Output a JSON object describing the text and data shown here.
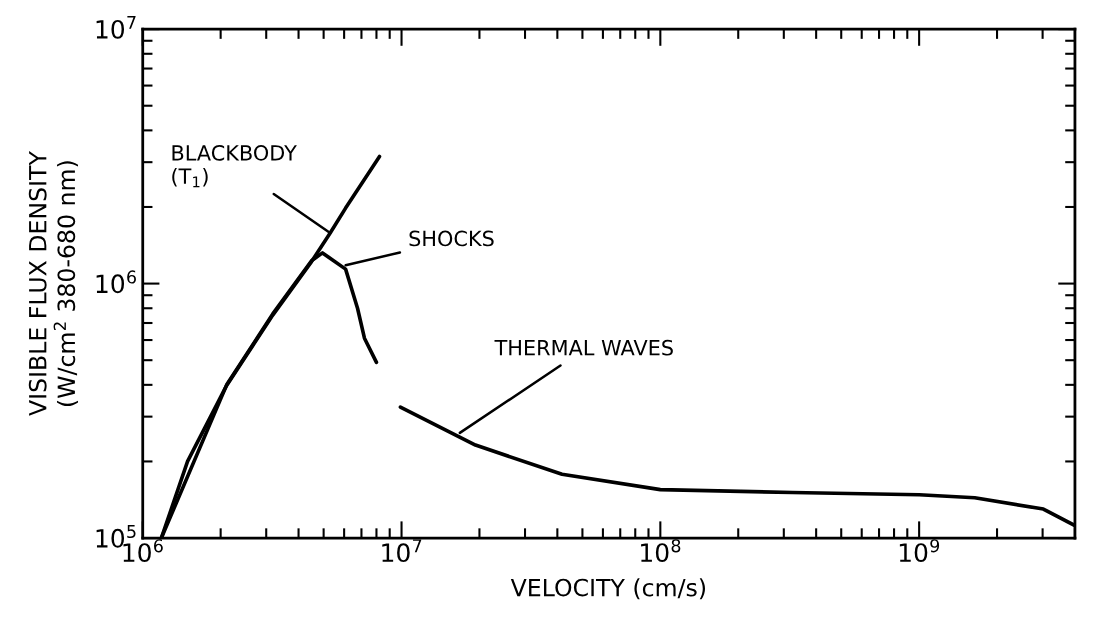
{
  "chart_data": {
    "type": "line",
    "xlabel": "VELOCITY (cm/s)",
    "ylabel": "VISIBLE FLUX DENSITY\n(W/cm$^{2}$ 380-680 nm)",
    "log": "xy",
    "grid": false,
    "legend": false,
    "marker": "none",
    "line_style": "solid",
    "xlim": [
      1000000,
      4000000000
    ],
    "ylim": [
      100000,
      10000000
    ],
    "xticks": [
      {
        "value": 1000000,
        "label": "10$^{6}$"
      },
      {
        "value": 10000000,
        "label": "10$^{7}$"
      },
      {
        "value": 100000000,
        "label": "10$^{8}$"
      },
      {
        "value": 1000000000,
        "label": "10$^{9}$"
      }
    ],
    "yticks": [
      {
        "value": 100000,
        "label": "10$^{5}$"
      },
      {
        "value": 1000000,
        "label": "10$^{6}$"
      },
      {
        "value": 10000000,
        "label": "10$^{7}$"
      }
    ],
    "series": [
      {
        "color": "#000000",
        "x": [
          1180000,
          1490000,
          2110000,
          3180000,
          4490000,
          5300000,
          6080000,
          8220000
        ],
        "values": [
          100000,
          200000,
          398000,
          752000,
          1220000,
          1580000,
          1980000,
          3160000
        ]
      },
      {
        "color": "#000000",
        "x": [
          1180000,
          2110000,
          3180000,
          4490000,
          4950000,
          6080000,
          6760000,
          7190000,
          8000000
        ],
        "values": [
          100000,
          400000,
          760000,
          1230000,
          1320000,
          1140000,
          800000,
          610000,
          490000
        ]
      },
      {
        "color": "#000000",
        "x": [
          9900000,
          19300000,
          41700000,
          100000000,
          324000000,
          1000000000,
          1640000000,
          3020000000,
          4000000000
        ],
        "values": [
          327000,
          232000,
          178000,
          155000,
          151000,
          148000,
          144000,
          130000,
          112000
        ]
      }
    ],
    "annotations": [
      {
        "text": "BLACKBODY\n(T$_{1}$)",
        "x": 5300000,
        "y": 1580000
      },
      {
        "text": "SHOCKS",
        "x": 6080000,
        "y": 1180000
      },
      {
        "text": "THERMAL WAVES",
        "x": 16800000,
        "y": 259000
      }
    ]
  }
}
